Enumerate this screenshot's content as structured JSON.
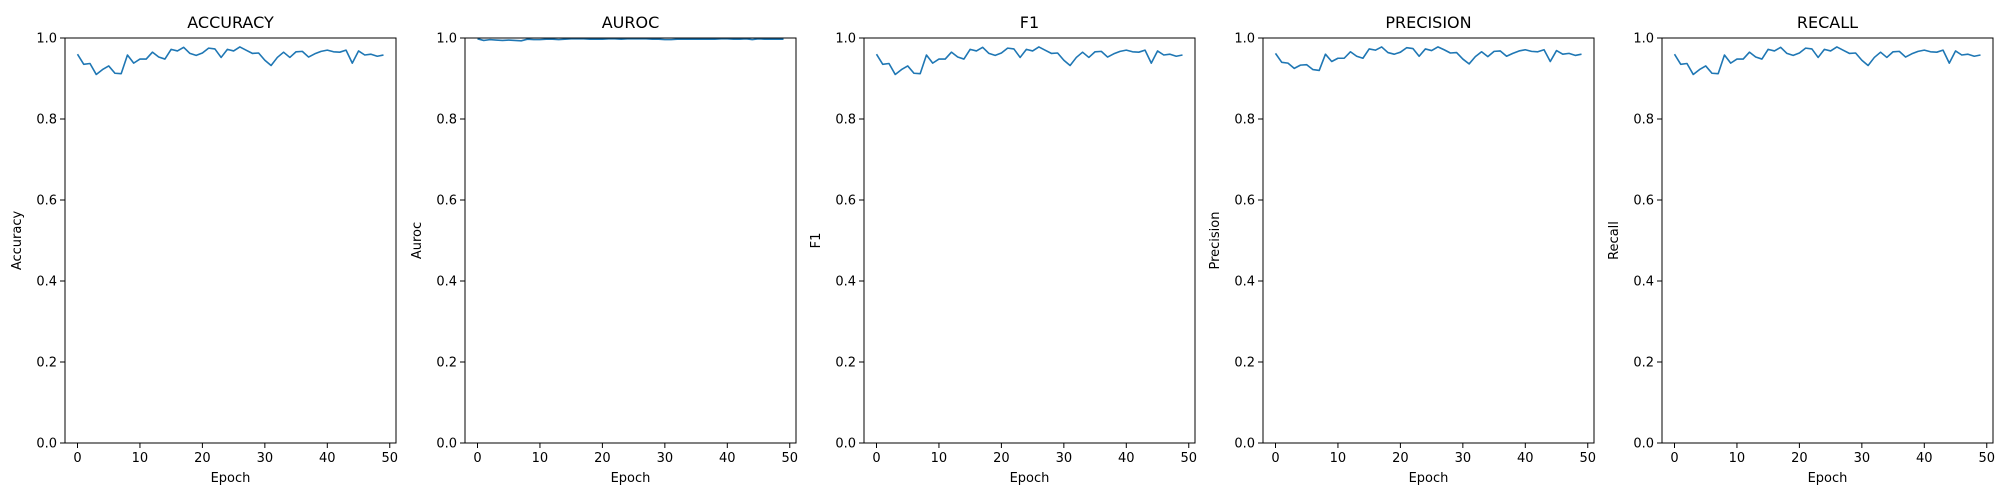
{
  "colors": {
    "line": "#1f77b4"
  },
  "chart_data": [
    {
      "type": "line",
      "title": "ACCURACY",
      "xlabel": "Epoch",
      "ylabel": "Accuracy",
      "xlim": [
        -2,
        51
      ],
      "ylim": [
        0.0,
        1.0
      ],
      "xticks": [
        0,
        10,
        20,
        30,
        40,
        50
      ],
      "yticks": [
        0.0,
        0.2,
        0.4,
        0.6,
        0.8,
        1.0
      ],
      "ytick_labels": [
        "0.0",
        "0.2",
        "0.4",
        "0.6",
        "0.8",
        "1.0"
      ],
      "grid": false,
      "series": [
        {
          "x": [
            0,
            1,
            2,
            3,
            4,
            5,
            6,
            7,
            8,
            9,
            10,
            11,
            12,
            13,
            14,
            15,
            16,
            17,
            18,
            19,
            20,
            21,
            22,
            23,
            24,
            25,
            26,
            27,
            28,
            29,
            30,
            31,
            32,
            33,
            34,
            35,
            36,
            37,
            38,
            39,
            40,
            41,
            42,
            43,
            44,
            45,
            46,
            47,
            48,
            49
          ],
          "values": [
            0.96,
            0.935,
            0.937,
            0.91,
            0.922,
            0.931,
            0.913,
            0.912,
            0.958,
            0.938,
            0.948,
            0.948,
            0.965,
            0.953,
            0.948,
            0.972,
            0.968,
            0.977,
            0.962,
            0.957,
            0.963,
            0.975,
            0.973,
            0.952,
            0.972,
            0.968,
            0.978,
            0.97,
            0.962,
            0.963,
            0.945,
            0.932,
            0.952,
            0.965,
            0.952,
            0.966,
            0.967,
            0.953,
            0.961,
            0.967,
            0.97,
            0.966,
            0.965,
            0.97,
            0.938,
            0.968,
            0.958,
            0.96,
            0.955,
            0.958
          ]
        }
      ]
    },
    {
      "type": "line",
      "title": "AUROC",
      "xlabel": "Epoch",
      "ylabel": "Auroc",
      "xlim": [
        -2,
        51
      ],
      "ylim": [
        0.0,
        1.0
      ],
      "xticks": [
        0,
        10,
        20,
        30,
        40,
        50
      ],
      "yticks": [
        0.0,
        0.2,
        0.4,
        0.6,
        0.8,
        1.0
      ],
      "ytick_labels": [
        "0.0",
        "0.2",
        "0.4",
        "0.6",
        "0.8",
        "1.0"
      ],
      "grid": false,
      "series": [
        {
          "x": [
            0,
            1,
            2,
            3,
            4,
            5,
            6,
            7,
            8,
            9,
            10,
            11,
            12,
            13,
            14,
            15,
            16,
            17,
            18,
            19,
            20,
            21,
            22,
            23,
            24,
            25,
            26,
            27,
            28,
            29,
            30,
            31,
            32,
            33,
            34,
            35,
            36,
            37,
            38,
            39,
            40,
            41,
            42,
            43,
            44,
            45,
            46,
            47,
            48,
            49
          ],
          "values": [
            0.998,
            0.994,
            0.996,
            0.995,
            0.994,
            0.995,
            0.994,
            0.993,
            0.997,
            0.996,
            0.996,
            0.997,
            0.997,
            0.996,
            0.997,
            0.998,
            0.998,
            0.998,
            0.997,
            0.997,
            0.997,
            0.998,
            0.998,
            0.997,
            0.998,
            0.998,
            0.998,
            0.998,
            0.997,
            0.997,
            0.996,
            0.996,
            0.997,
            0.997,
            0.997,
            0.997,
            0.997,
            0.997,
            0.997,
            0.998,
            0.998,
            0.997,
            0.997,
            0.998,
            0.996,
            0.998,
            0.997,
            0.997,
            0.997,
            0.997
          ]
        }
      ]
    },
    {
      "type": "line",
      "title": "F1",
      "xlabel": "Epoch",
      "ylabel": "F1",
      "xlim": [
        -2,
        51
      ],
      "ylim": [
        0.0,
        1.0
      ],
      "xticks": [
        0,
        10,
        20,
        30,
        40,
        50
      ],
      "yticks": [
        0.0,
        0.2,
        0.4,
        0.6,
        0.8,
        1.0
      ],
      "ytick_labels": [
        "0.0",
        "0.2",
        "0.4",
        "0.6",
        "0.8",
        "1.0"
      ],
      "grid": false,
      "series": [
        {
          "x": [
            0,
            1,
            2,
            3,
            4,
            5,
            6,
            7,
            8,
            9,
            10,
            11,
            12,
            13,
            14,
            15,
            16,
            17,
            18,
            19,
            20,
            21,
            22,
            23,
            24,
            25,
            26,
            27,
            28,
            29,
            30,
            31,
            32,
            33,
            34,
            35,
            36,
            37,
            38,
            39,
            40,
            41,
            42,
            43,
            44,
            45,
            46,
            47,
            48,
            49
          ],
          "values": [
            0.96,
            0.935,
            0.937,
            0.91,
            0.922,
            0.931,
            0.913,
            0.912,
            0.958,
            0.938,
            0.948,
            0.948,
            0.965,
            0.953,
            0.948,
            0.972,
            0.968,
            0.977,
            0.962,
            0.957,
            0.963,
            0.975,
            0.973,
            0.952,
            0.972,
            0.968,
            0.978,
            0.97,
            0.962,
            0.963,
            0.945,
            0.932,
            0.952,
            0.965,
            0.952,
            0.966,
            0.967,
            0.953,
            0.961,
            0.967,
            0.97,
            0.966,
            0.965,
            0.97,
            0.938,
            0.968,
            0.958,
            0.96,
            0.955,
            0.958
          ]
        }
      ]
    },
    {
      "type": "line",
      "title": "PRECISION",
      "xlabel": "Epoch",
      "ylabel": "Precision",
      "xlim": [
        -2,
        51
      ],
      "ylim": [
        0.0,
        1.0
      ],
      "xticks": [
        0,
        10,
        20,
        30,
        40,
        50
      ],
      "yticks": [
        0.0,
        0.2,
        0.4,
        0.6,
        0.8,
        1.0
      ],
      "ytick_labels": [
        "0.0",
        "0.2",
        "0.4",
        "0.6",
        "0.8",
        "1.0"
      ],
      "grid": false,
      "series": [
        {
          "x": [
            0,
            1,
            2,
            3,
            4,
            5,
            6,
            7,
            8,
            9,
            10,
            11,
            12,
            13,
            14,
            15,
            16,
            17,
            18,
            19,
            20,
            21,
            22,
            23,
            24,
            25,
            26,
            27,
            28,
            29,
            30,
            31,
            32,
            33,
            34,
            35,
            36,
            37,
            38,
            39,
            40,
            41,
            42,
            43,
            44,
            45,
            46,
            47,
            48,
            49
          ],
          "values": [
            0.962,
            0.94,
            0.938,
            0.925,
            0.933,
            0.934,
            0.922,
            0.92,
            0.96,
            0.942,
            0.95,
            0.95,
            0.966,
            0.955,
            0.95,
            0.973,
            0.97,
            0.978,
            0.964,
            0.96,
            0.965,
            0.976,
            0.974,
            0.955,
            0.973,
            0.969,
            0.978,
            0.971,
            0.963,
            0.964,
            0.948,
            0.936,
            0.954,
            0.966,
            0.954,
            0.967,
            0.968,
            0.955,
            0.962,
            0.968,
            0.971,
            0.967,
            0.966,
            0.971,
            0.942,
            0.969,
            0.96,
            0.962,
            0.957,
            0.96
          ]
        }
      ]
    },
    {
      "type": "line",
      "title": "RECALL",
      "xlabel": "Epoch",
      "ylabel": "Recall",
      "xlim": [
        -2,
        51
      ],
      "ylim": [
        0.0,
        1.0
      ],
      "xticks": [
        0,
        10,
        20,
        30,
        40,
        50
      ],
      "yticks": [
        0.0,
        0.2,
        0.4,
        0.6,
        0.8,
        1.0
      ],
      "ytick_labels": [
        "0.0",
        "0.2",
        "0.4",
        "0.6",
        "0.8",
        "1.0"
      ],
      "grid": false,
      "series": [
        {
          "x": [
            0,
            1,
            2,
            3,
            4,
            5,
            6,
            7,
            8,
            9,
            10,
            11,
            12,
            13,
            14,
            15,
            16,
            17,
            18,
            19,
            20,
            21,
            22,
            23,
            24,
            25,
            26,
            27,
            28,
            29,
            30,
            31,
            32,
            33,
            34,
            35,
            36,
            37,
            38,
            39,
            40,
            41,
            42,
            43,
            44,
            45,
            46,
            47,
            48,
            49
          ],
          "values": [
            0.96,
            0.935,
            0.937,
            0.91,
            0.922,
            0.931,
            0.913,
            0.912,
            0.958,
            0.938,
            0.948,
            0.948,
            0.965,
            0.953,
            0.948,
            0.972,
            0.968,
            0.977,
            0.962,
            0.957,
            0.963,
            0.975,
            0.973,
            0.952,
            0.972,
            0.968,
            0.978,
            0.97,
            0.962,
            0.963,
            0.945,
            0.932,
            0.952,
            0.965,
            0.952,
            0.966,
            0.967,
            0.953,
            0.961,
            0.967,
            0.97,
            0.966,
            0.965,
            0.97,
            0.938,
            0.968,
            0.958,
            0.96,
            0.955,
            0.958
          ]
        }
      ]
    }
  ]
}
